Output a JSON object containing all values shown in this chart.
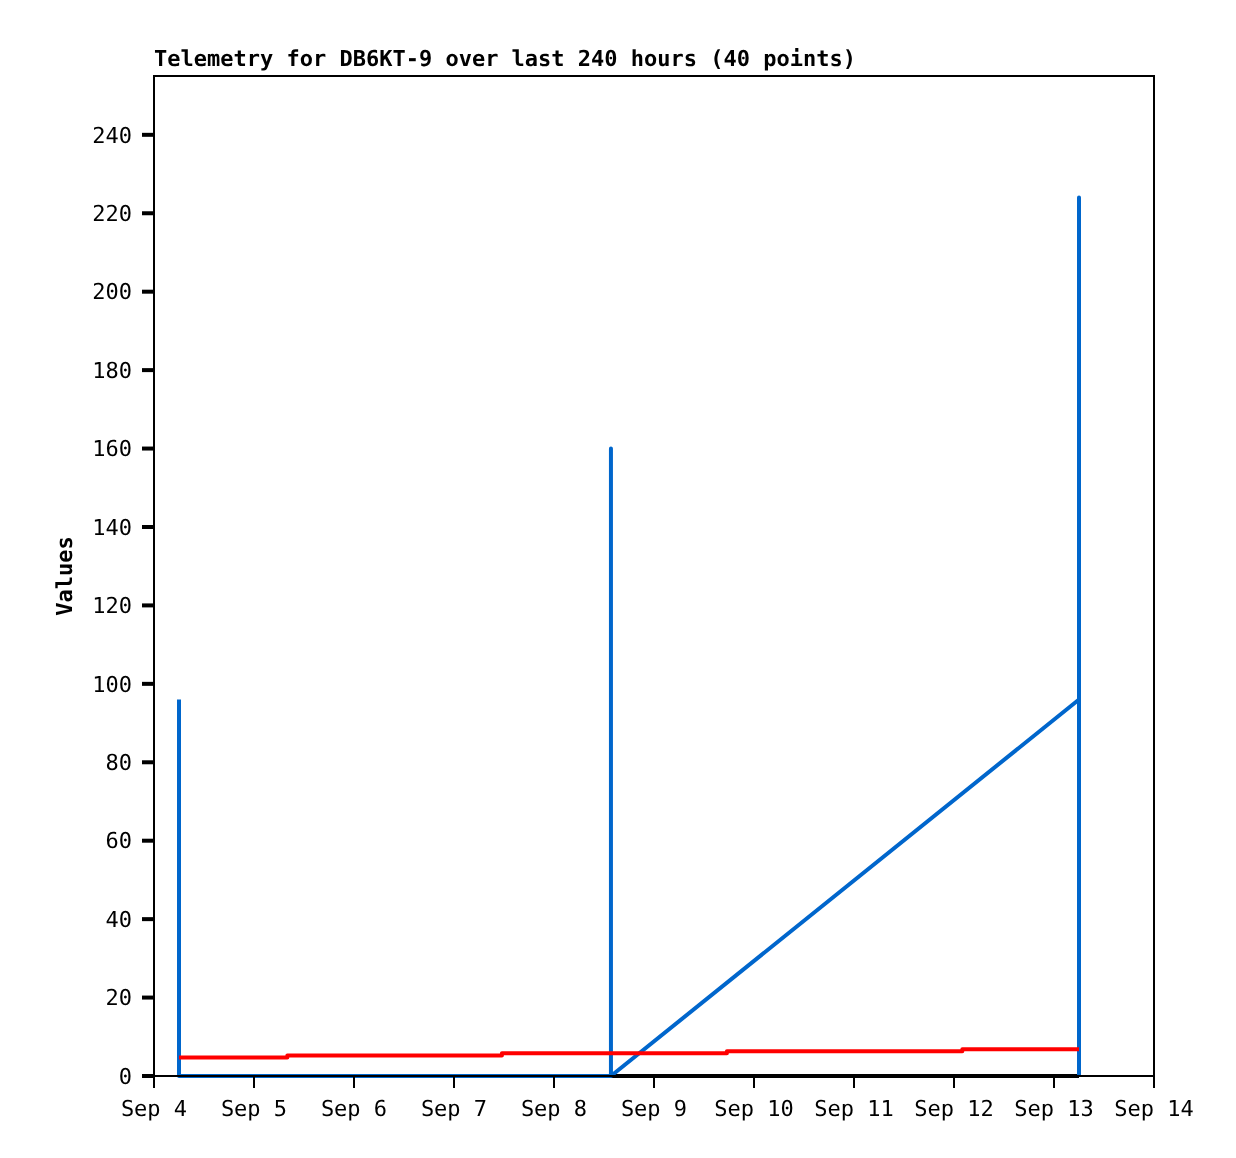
{
  "chart_data": {
    "type": "line",
    "title": "Telemetry for DB6KT-9 over last 240 hours (40 points)",
    "ylabel": "Values",
    "xlim": [
      "--09-04",
      "--09-14"
    ],
    "xticks": [
      {
        "value": "--09-04",
        "label": "Sep 4"
      },
      {
        "value": "--09-05",
        "label": "Sep 5"
      },
      {
        "value": "--09-06",
        "label": "Sep 6"
      },
      {
        "value": "--09-07",
        "label": "Sep 7"
      },
      {
        "value": "--09-08",
        "label": "Sep 8"
      },
      {
        "value": "--09-09",
        "label": "Sep 9"
      },
      {
        "value": "--09-10",
        "label": "Sep 10"
      },
      {
        "value": "--09-11",
        "label": "Sep 11"
      },
      {
        "value": "--09-12",
        "label": "Sep 12"
      },
      {
        "value": "--09-13",
        "label": "Sep 13"
      },
      {
        "value": "--09-14",
        "label": "Sep 14"
      }
    ],
    "ylim": [
      0,
      255
    ],
    "yticks": [
      0,
      20,
      40,
      60,
      80,
      100,
      120,
      140,
      160,
      180,
      200,
      220,
      240
    ],
    "grid": false,
    "series": [
      {
        "color": "#000000",
        "x": [
          "--09-04T06:00",
          "--09-13T06:00"
        ],
        "values": [
          0,
          0
        ]
      },
      {
        "color": "#0066cc",
        "x": [
          "--09-04T06:00",
          "--09-04T06:00",
          "--09-08T13:40",
          "--09-08T13:40",
          "--09-08T13:40",
          "--09-13T06:00",
          "--09-13T06:00",
          "--09-13T06:00"
        ],
        "values": [
          96,
          0,
          0,
          160,
          0,
          96,
          224,
          0
        ]
      },
      {
        "type": "step",
        "color": "#ff0000",
        "x": [
          "--09-04T06:00",
          "--09-05T08:00",
          "--09-07T11:30",
          "--09-09T17:30",
          "--09-12T02:00",
          "--09-13T06:00"
        ],
        "values": [
          4.7,
          5.2,
          5.8,
          6.3,
          6.8,
          6.8
        ]
      }
    ]
  }
}
